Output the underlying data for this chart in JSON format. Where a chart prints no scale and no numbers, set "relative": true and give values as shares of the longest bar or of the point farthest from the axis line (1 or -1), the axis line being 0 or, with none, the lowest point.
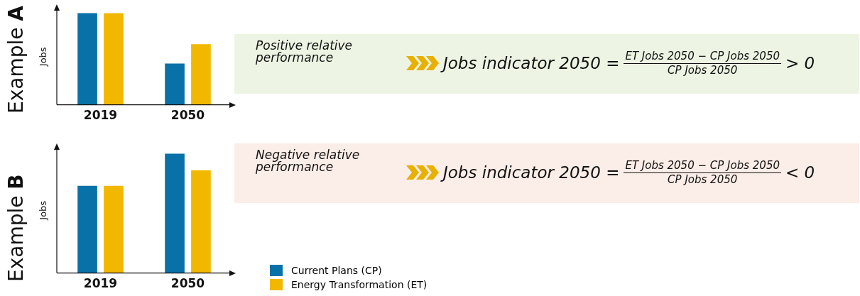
{
  "chart_data": [
    {
      "type": "bar",
      "title": "Example A",
      "ylabel": "Jobs",
      "relative": true,
      "grid": false,
      "tick_labels": "x",
      "categories": [
        "2019",
        "2050"
      ],
      "series": [
        {
          "color": "#0872a8",
          "values": [
            1,
            0.45
          ]
        },
        {
          "color": "#f2b800",
          "values": [
            1,
            0.66
          ]
        }
      ],
      "annotations": [
        "Positive relative performance",
        "Jobs indicator 2050 =",
        "ET Jobs 2050 − CP Jobs 2050",
        "CP Jobs 2050",
        "> 0"
      ]
    },
    {
      "type": "bar",
      "title": "Example B",
      "ylabel": "Jobs",
      "relative": true,
      "grid": false,
      "tick_labels": "x",
      "legend": "bottom",
      "categories": [
        "2019",
        "2050"
      ],
      "series": [
        {
          "name": "Current Plans (CP)",
          "color": "#0872a8",
          "values": [
            0.73,
            1
          ]
        },
        {
          "name": "Energy Transformation (ET)",
          "color": "#f2b800",
          "values": [
            0.73,
            0.86
          ]
        }
      ],
      "annotations": [
        "Negative relative performance",
        "Jobs indicator 2050 =",
        "ET Jobs 2050 − CP Jobs 2050",
        "CP Jobs 2050",
        "< 0"
      ]
    }
  ]
}
